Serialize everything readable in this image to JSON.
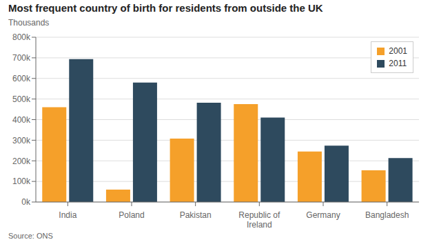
{
  "chart_data": {
    "type": "bar",
    "title": "Most frequent country of birth for residents from outside the UK",
    "subtitle": "Thousands",
    "source": "Source: ONS",
    "categories": [
      "India",
      "Poland",
      "Pakistan",
      "Republic of\nIreland",
      "Germany",
      "Bangladesh"
    ],
    "series": [
      {
        "name": "2001",
        "color": "#F5A02A",
        "values": [
          460000,
          60000,
          308000,
          475000,
          245000,
          154000
        ]
      },
      {
        "name": "2011",
        "color": "#2E4A5E",
        "values": [
          694000,
          580000,
          482000,
          410000,
          274000,
          213000
        ]
      }
    ],
    "ylim": [
      0,
      800000
    ],
    "yticks": [
      {
        "value": 0,
        "label": "0k"
      },
      {
        "value": 100000,
        "label": "100k"
      },
      {
        "value": 200000,
        "label": "200k"
      },
      {
        "value": 300000,
        "label": "300k"
      },
      {
        "value": 400000,
        "label": "400k"
      },
      {
        "value": 500000,
        "label": "500k"
      },
      {
        "value": 600000,
        "label": "600k"
      },
      {
        "value": 700000,
        "label": "700k"
      },
      {
        "value": 800000,
        "label": "800k"
      }
    ],
    "grid": true,
    "legend": "upper right"
  }
}
